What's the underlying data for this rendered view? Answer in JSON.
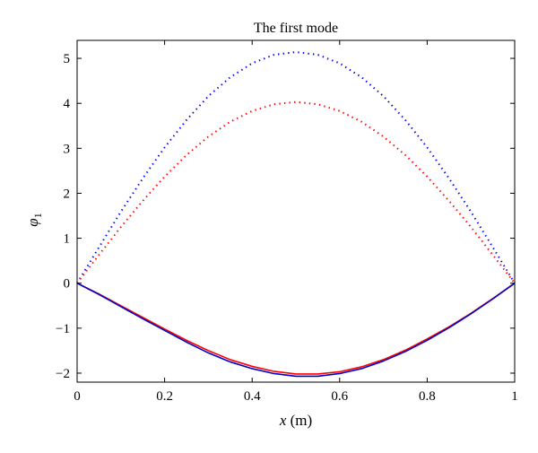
{
  "chart_data": {
    "type": "line",
    "title": "The first mode",
    "xlabel": "x (m)",
    "xlabel_var": "x",
    "xlabel_unit": " (m)",
    "ylabel": "φ1",
    "ylabel_symbol": "φ",
    "ylabel_sub": "1",
    "xlim": [
      0,
      1
    ],
    "ylim": [
      -2.2,
      5.4
    ],
    "xticks": [
      0,
      0.2,
      0.4,
      0.6,
      0.8,
      1
    ],
    "xtick_labels": [
      "0",
      "0.2",
      "0.4",
      "0.6",
      "0.8",
      "1"
    ],
    "yticks": [
      -2,
      -1,
      0,
      1,
      2,
      3,
      4,
      5
    ],
    "ytick_labels": [
      "−2",
      "−1",
      "0",
      "1",
      "2",
      "3",
      "4",
      "5"
    ],
    "grid": false,
    "series": [
      {
        "style": "dotted",
        "color": "#0000ff",
        "x": [
          0,
          0.05,
          0.1,
          0.15,
          0.2,
          0.25,
          0.3,
          0.35,
          0.4,
          0.45,
          0.5,
          0.55,
          0.6,
          0.65,
          0.7,
          0.75,
          0.8,
          0.85,
          0.9,
          0.95,
          1
        ],
        "y": [
          0,
          0.8,
          1.59,
          2.33,
          3.02,
          3.63,
          4.16,
          4.58,
          4.89,
          5.08,
          5.14,
          5.08,
          4.89,
          4.58,
          4.16,
          3.63,
          3.02,
          2.33,
          1.59,
          0.8,
          0
        ]
      },
      {
        "style": "dotted",
        "color": "#ff0000",
        "x": [
          0,
          0.05,
          0.1,
          0.15,
          0.2,
          0.25,
          0.3,
          0.35,
          0.4,
          0.45,
          0.5,
          0.55,
          0.6,
          0.65,
          0.7,
          0.75,
          0.8,
          0.85,
          0.9,
          0.95,
          1
        ],
        "y": [
          0,
          0.63,
          1.25,
          1.83,
          2.37,
          2.85,
          3.26,
          3.59,
          3.83,
          3.98,
          4.03,
          3.98,
          3.83,
          3.59,
          3.26,
          2.85,
          2.37,
          1.83,
          1.25,
          0.63,
          0
        ]
      },
      {
        "style": "solid",
        "color": "#ff0000",
        "x": [
          0,
          0.05,
          0.1,
          0.15,
          0.2,
          0.25,
          0.3,
          0.35,
          0.4,
          0.45,
          0.5,
          0.55,
          0.6,
          0.65,
          0.7,
          0.75,
          0.8,
          0.85,
          0.9,
          0.95,
          1
        ],
        "y": [
          0,
          -0.24,
          -0.5,
          -0.76,
          -1.02,
          -1.27,
          -1.5,
          -1.7,
          -1.85,
          -1.96,
          -2.02,
          -2.02,
          -1.97,
          -1.86,
          -1.7,
          -1.49,
          -1.24,
          -0.97,
          -0.67,
          -0.34,
          0
        ]
      },
      {
        "style": "solid",
        "color": "#0000cc",
        "x": [
          0,
          0.05,
          0.1,
          0.15,
          0.2,
          0.25,
          0.3,
          0.35,
          0.4,
          0.45,
          0.5,
          0.55,
          0.6,
          0.65,
          0.7,
          0.75,
          0.8,
          0.85,
          0.9,
          0.95,
          1
        ],
        "y": [
          0,
          -0.25,
          -0.52,
          -0.79,
          -1.05,
          -1.31,
          -1.55,
          -1.75,
          -1.9,
          -2.01,
          -2.07,
          -2.07,
          -2.01,
          -1.9,
          -1.73,
          -1.52,
          -1.27,
          -0.99,
          -0.68,
          -0.35,
          0
        ]
      }
    ]
  }
}
